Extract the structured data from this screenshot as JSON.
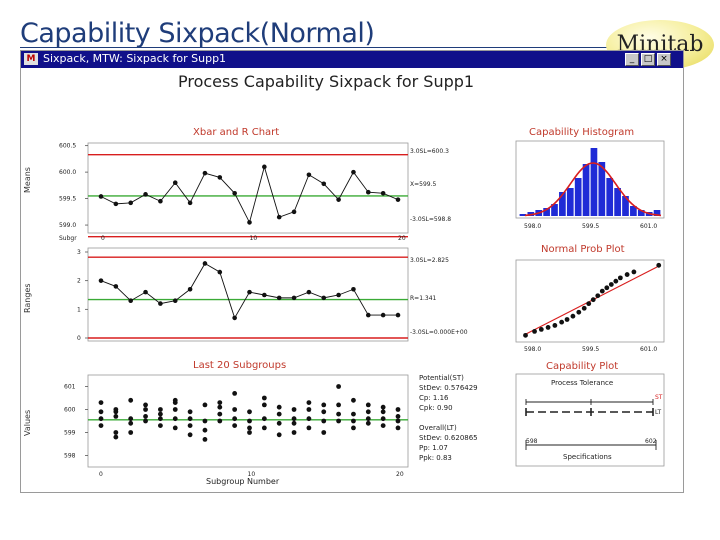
{
  "slide": {
    "title": "Capability Sixpack(Normal)",
    "badge": "Minitab"
  },
  "window": {
    "title": "Sixpack, MTW: Sixpack for Supp1",
    "buttons": {
      "minimize": "_",
      "maximize": "□",
      "close": "×"
    }
  },
  "colors": {
    "title": "#1f3d7a",
    "limit": "#d81e1e",
    "center": "#3aaa35",
    "bar": "#1f2bd6",
    "fit": "#d81e1e"
  },
  "chart_data": {
    "type": "sixpack",
    "title": "Process Capability Sixpack for Supp1",
    "xbar": {
      "title": "Xbar and R Chart",
      "ylabel": "Means",
      "x_tick_label": "Subgr",
      "x_ticks": [
        "0",
        "10",
        "20"
      ],
      "y_ticks": [
        "600.5",
        "600.0",
        "599.5",
        "599.0"
      ],
      "ylim": [
        598.85,
        600.55
      ],
      "ucl": 600.33,
      "center": 599.55,
      "lcl": 598.78,
      "ucl_label": "3.0SL=600.3",
      "center_label": "X=599.5",
      "lcl_label": "-3.0SL=598.8",
      "values": [
        599.54,
        599.4,
        599.42,
        599.58,
        599.45,
        599.8,
        599.42,
        599.98,
        599.9,
        599.6,
        599.05,
        600.1,
        599.15,
        599.25,
        599.95,
        599.78,
        599.48,
        600.0,
        599.62,
        599.6,
        599.48
      ]
    },
    "r_chart": {
      "ylabel": "Ranges",
      "y_ticks": [
        "3",
        "2",
        "1",
        "0"
      ],
      "ylim": [
        0,
        3
      ],
      "ucl": 2.82,
      "center": 1.34,
      "lcl": 0,
      "ucl_label": "3.0SL=2.825",
      "center_label": "R=1.341",
      "lcl_label": "-3.0SL=0.000E+00",
      "values": [
        2.0,
        1.8,
        1.3,
        1.6,
        1.2,
        1.3,
        1.7,
        2.6,
        2.3,
        0.7,
        1.6,
        1.5,
        1.4,
        1.4,
        1.6,
        1.4,
        1.5,
        1.7,
        0.8,
        0.8,
        0.8
      ]
    },
    "last20": {
      "title": "Last 20 Subgroups",
      "ylabel": "Values",
      "xlabel": "Subgroup Number",
      "x_ticks": [
        "0",
        "10",
        "20"
      ],
      "y_ticks": [
        "601",
        "600",
        "599",
        "598"
      ],
      "ylim": [
        597.5,
        601.5
      ],
      "groups": [
        [
          599.3,
          599.6,
          599.9,
          600.3
        ],
        [
          598.8,
          599.0,
          599.7,
          599.9,
          600.0
        ],
        [
          599.0,
          599.4,
          599.6,
          600.4
        ],
        [
          599.5,
          599.7,
          600.0,
          600.2
        ],
        [
          599.3,
          599.6,
          599.8,
          600.0
        ],
        [
          599.2,
          599.6,
          600.0,
          600.3,
          600.4
        ],
        [
          598.9,
          599.3,
          599.6,
          599.9
        ],
        [
          598.7,
          599.1,
          599.5,
          600.2
        ],
        [
          599.5,
          599.8,
          600.1,
          600.3
        ],
        [
          599.3,
          599.6,
          600.0,
          600.7
        ],
        [
          599.0,
          599.2,
          599.5,
          599.9
        ],
        [
          599.2,
          599.6,
          600.2,
          600.5
        ],
        [
          598.9,
          599.4,
          599.8,
          600.1
        ],
        [
          599.0,
          599.4,
          599.6,
          600.0
        ],
        [
          599.2,
          599.6,
          600.0,
          600.3
        ],
        [
          599.0,
          599.5,
          599.9,
          600.2
        ],
        [
          599.5,
          599.8,
          600.2,
          601.0
        ],
        [
          599.2,
          599.5,
          599.8,
          600.4
        ],
        [
          599.4,
          599.6,
          599.9,
          600.2
        ],
        [
          599.3,
          599.6,
          599.9,
          600.1
        ],
        [
          599.2,
          599.5,
          599.7,
          600.0
        ]
      ]
    },
    "stats": {
      "potential_label": "Potential(ST)",
      "st_stdev": "StDev: 0.576429",
      "cp": "Cp:     1.16",
      "cpk": "Cpk:   0.90",
      "overall_label": "Overall(LT)",
      "lt_stdev": "StDev: 0.620865",
      "pp": "Pp:     1.07",
      "ppk": "Ppk:   0.83"
    },
    "histogram": {
      "title": "Capability Histogram",
      "x_ticks": [
        "598.0",
        "599.5",
        "601.0"
      ],
      "bin_start": 597.95,
      "bin_width": 0.158,
      "counts": [
        1,
        2,
        3,
        4,
        6,
        12,
        14,
        19,
        26,
        34,
        27,
        19,
        14,
        10,
        5,
        3,
        2,
        3
      ]
    },
    "normal_prob": {
      "title": "Normal Prob Plot",
      "x_ticks": [
        "598.0",
        "599.5",
        "601.0"
      ],
      "points": [
        [
          598.1,
          -2.6
        ],
        [
          598.3,
          -2.3
        ],
        [
          598.45,
          -2.15
        ],
        [
          598.6,
          -2.0
        ],
        [
          598.75,
          -1.85
        ],
        [
          598.9,
          -1.6
        ],
        [
          599.02,
          -1.4
        ],
        [
          599.15,
          -1.15
        ],
        [
          599.28,
          -0.85
        ],
        [
          599.4,
          -0.55
        ],
        [
          599.5,
          -0.2
        ],
        [
          599.6,
          0.1
        ],
        [
          599.7,
          0.4
        ],
        [
          599.8,
          0.75
        ],
        [
          599.9,
          1.0
        ],
        [
          600.0,
          1.25
        ],
        [
          600.1,
          1.5
        ],
        [
          600.2,
          1.75
        ],
        [
          600.35,
          2.0
        ],
        [
          600.5,
          2.2
        ],
        [
          601.05,
          2.7
        ]
      ]
    },
    "capability_plot": {
      "title": "Capability Plot",
      "tolerance_label": "Process Tolerance",
      "specs_label": "Specifications",
      "st_label": "ST",
      "lt_label": "LT",
      "spec_ticks": [
        "598",
        "602"
      ]
    }
  }
}
